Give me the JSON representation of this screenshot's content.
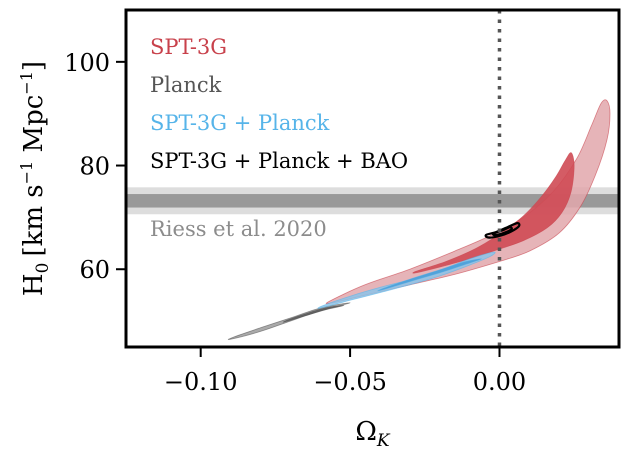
{
  "chart_data": {
    "type": "contour",
    "xlabel": "Ω",
    "xlabel_sub": "K",
    "ylabel_main": "H",
    "ylabel_sub": "0",
    "ylabel_units": "[km s",
    "ylabel_units_sup": "−1",
    "ylabel_units_mid": " Mpc",
    "ylabel_units_sup2": "−1",
    "ylabel_units_end": "]",
    "xlim": [
      -0.125,
      0.04
    ],
    "ylim": [
      45,
      110
    ],
    "xticks": [
      {
        "value": -0.1,
        "label": "−0.10"
      },
      {
        "value": -0.05,
        "label": "−0.05"
      },
      {
        "value": 0.0,
        "label": "0.00"
      }
    ],
    "yticks": [
      {
        "value": 60,
        "label": "60"
      },
      {
        "value": 80,
        "label": "80"
      },
      {
        "value": 100,
        "label": "100"
      }
    ],
    "reference_line": {
      "x": 0.0,
      "style": "dotted",
      "color": "#555555"
    },
    "band": {
      "label": "Riess et al. 2020",
      "center": 73.2,
      "inner": [
        71.9,
        74.5
      ],
      "outer": [
        70.6,
        75.8
      ],
      "inner_color": "#999999",
      "outer_color": "#dddddd"
    },
    "series": [
      {
        "name": "SPT-3G",
        "color": "#c8414b",
        "outer_fill": "#e2a7ac",
        "inner_fill": "#cf4a54",
        "outer_contour": [
          [
            -0.057,
            53.8
          ],
          [
            -0.045,
            57.0
          ],
          [
            -0.03,
            60.0
          ],
          [
            -0.015,
            63.5
          ],
          [
            -0.003,
            66.5
          ],
          [
            0.008,
            70.0
          ],
          [
            0.018,
            75.0
          ],
          [
            0.026,
            81.5
          ],
          [
            0.031,
            88.0
          ],
          [
            0.034,
            92.0
          ],
          [
            0.036,
            92.5
          ],
          [
            0.037,
            90.0
          ],
          [
            0.036,
            85.0
          ],
          [
            0.032,
            78.0
          ],
          [
            0.027,
            72.0
          ],
          [
            0.02,
            67.0
          ],
          [
            0.01,
            63.5
          ],
          [
            0.0,
            61.5
          ],
          [
            -0.015,
            59.0
          ],
          [
            -0.03,
            57.0
          ],
          [
            -0.045,
            55.0
          ],
          [
            -0.056,
            53.5
          ]
        ],
        "inner_contour": [
          [
            -0.028,
            59.6
          ],
          [
            -0.018,
            61.5
          ],
          [
            -0.008,
            64.0
          ],
          [
            0.0,
            66.8
          ],
          [
            0.008,
            70.3
          ],
          [
            0.014,
            74.0
          ],
          [
            0.019,
            78.0
          ],
          [
            0.022,
            81.0
          ],
          [
            0.024,
            82.5
          ],
          [
            0.025,
            80.0
          ],
          [
            0.024,
            75.0
          ],
          [
            0.021,
            71.0
          ],
          [
            0.016,
            68.0
          ],
          [
            0.008,
            65.5
          ],
          [
            -0.002,
            63.5
          ],
          [
            -0.013,
            61.5
          ],
          [
            -0.027,
            59.4
          ]
        ]
      },
      {
        "name": "Planck",
        "color": "#555555",
        "outer_fill": "#9b9b9b",
        "inner_fill": "#5a5a5a",
        "outer_contour": [
          [
            -0.09,
            46.5
          ],
          [
            -0.08,
            48.0
          ],
          [
            -0.07,
            50.0
          ],
          [
            -0.06,
            52.0
          ],
          [
            -0.05,
            53.5
          ],
          [
            -0.06,
            52.5
          ],
          [
            -0.07,
            50.6
          ],
          [
            -0.08,
            48.7
          ],
          [
            -0.089,
            46.9
          ]
        ],
        "inner_contour": [
          [
            -0.072,
            49.8
          ],
          [
            -0.065,
            51.0
          ],
          [
            -0.058,
            52.2
          ],
          [
            -0.052,
            53.0
          ],
          [
            -0.058,
            52.6
          ],
          [
            -0.065,
            51.4
          ],
          [
            -0.071,
            50.2
          ]
        ]
      },
      {
        "name": "SPT-3G + Planck",
        "color": "#56b4e9",
        "outer_fill": "#8cc3e8",
        "inner_fill": "#4a9fd9",
        "outer_contour": [
          [
            -0.06,
            52.5
          ],
          [
            -0.05,
            54.0
          ],
          [
            -0.04,
            55.5
          ],
          [
            -0.03,
            57.0
          ],
          [
            -0.02,
            58.7
          ],
          [
            -0.01,
            60.8
          ],
          [
            -0.003,
            62.5
          ],
          [
            -0.002,
            63.3
          ],
          [
            -0.01,
            62.0
          ],
          [
            -0.02,
            59.8
          ],
          [
            -0.03,
            58.0
          ],
          [
            -0.04,
            56.5
          ],
          [
            -0.05,
            54.8
          ],
          [
            -0.059,
            53.0
          ]
        ],
        "inner_contour": [
          [
            -0.04,
            55.9
          ],
          [
            -0.03,
            57.6
          ],
          [
            -0.02,
            59.3
          ],
          [
            -0.012,
            60.8
          ],
          [
            -0.006,
            62.0
          ],
          [
            -0.012,
            61.4
          ],
          [
            -0.02,
            59.9
          ],
          [
            -0.03,
            58.1
          ],
          [
            -0.039,
            56.3
          ]
        ]
      },
      {
        "name": "SPT-3G + Planck + BAO",
        "color": "#000000",
        "outer_fill": "none",
        "inner_fill": "none",
        "outer_contour": [
          [
            -0.0045,
            66.6
          ],
          [
            -0.001,
            67.2
          ],
          [
            0.003,
            68.2
          ],
          [
            0.006,
            68.9
          ],
          [
            0.0065,
            68.3
          ],
          [
            0.004,
            67.3
          ],
          [
            0.0005,
            66.5
          ],
          [
            -0.0035,
            66.1
          ]
        ],
        "inner_contour": [
          [
            -0.002,
            66.9
          ],
          [
            0.001,
            67.5
          ],
          [
            0.0035,
            68.1
          ],
          [
            0.004,
            67.7
          ],
          [
            0.0015,
            67.0
          ],
          [
            -0.0015,
            66.6
          ]
        ]
      }
    ],
    "legend": {
      "placement": "top-left"
    }
  }
}
